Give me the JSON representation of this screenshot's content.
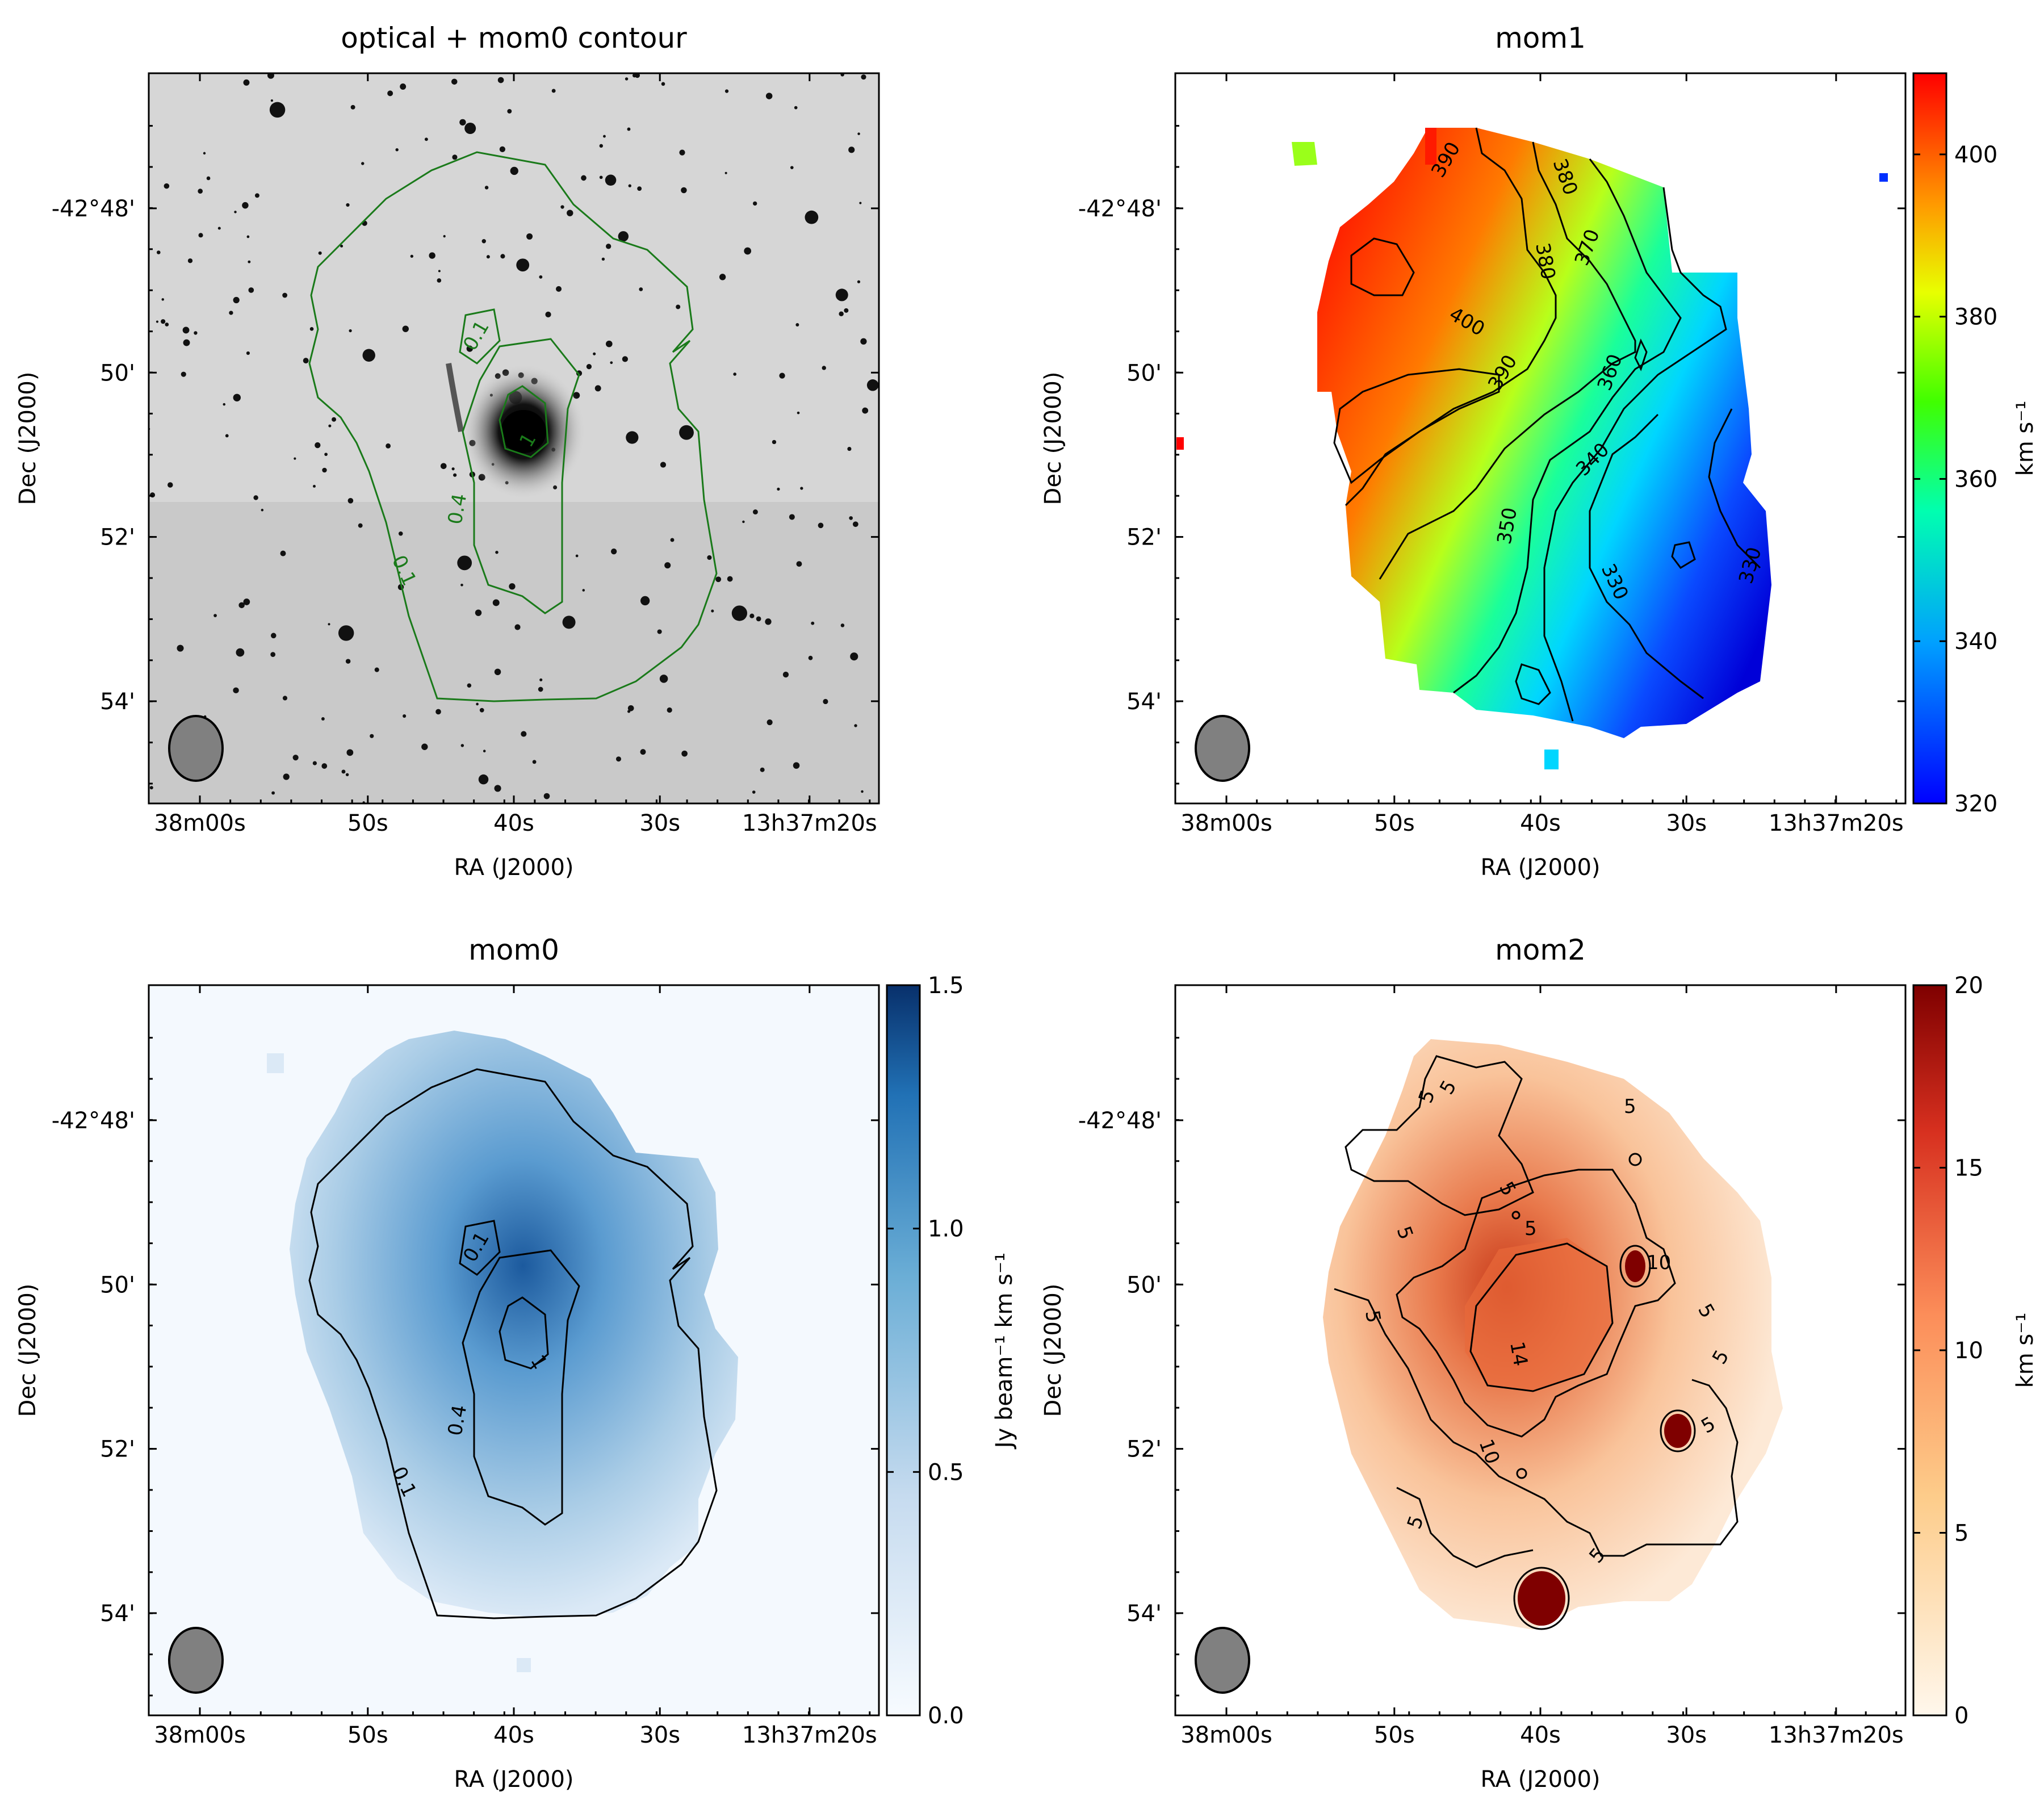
{
  "chart_data": [
    {
      "type": "heatmap",
      "id": "optical",
      "title": "optical + mom0 contour",
      "xlabel": "RA (J2000)",
      "ylabel": "Dec (J2000)",
      "x_ticks": [
        "38m00s",
        "50s",
        "40s",
        "30s",
        "13h37m20s"
      ],
      "y_ticks": [
        "-42°48'",
        "50'",
        "52'",
        "54'"
      ],
      "contour_levels": [
        "0.1",
        "0.4",
        "1"
      ],
      "contour_labels": [
        "0.1",
        "0.1",
        "0.4",
        "1"
      ],
      "contour_color": "#1a7a1a",
      "colorbar": null
    },
    {
      "type": "heatmap",
      "id": "mom1",
      "title": "mom1",
      "xlabel": "RA (J2000)",
      "ylabel": "Dec (J2000)",
      "x_ticks": [
        "38m00s",
        "50s",
        "40s",
        "30s",
        "13h37m20s"
      ],
      "y_ticks": [
        "-42°48'",
        "50'",
        "52'",
        "54'"
      ],
      "contour_labels": [
        "390",
        "380",
        "380",
        "370",
        "400",
        "390",
        "360",
        "340",
        "350",
        "330",
        "330"
      ],
      "colorbar": {
        "label": "km s⁻¹",
        "range": [
          320,
          410
        ],
        "ticks": [
          "320",
          "340",
          "360",
          "380",
          "400"
        ],
        "tick_values": [
          320,
          340,
          360,
          380,
          400
        ],
        "colormap": "jet"
      }
    },
    {
      "type": "heatmap",
      "id": "mom0",
      "title": "mom0",
      "xlabel": "RA (J2000)",
      "ylabel": "Dec (J2000)",
      "x_ticks": [
        "38m00s",
        "50s",
        "40s",
        "30s",
        "13h37m20s"
      ],
      "y_ticks": [
        "-42°48'",
        "50'",
        "52'",
        "54'"
      ],
      "contour_labels": [
        "0.1",
        "0.1",
        "0.4",
        "1"
      ],
      "colorbar": {
        "label": "Jy beam⁻¹ km s⁻¹",
        "range": [
          0.0,
          1.5
        ],
        "ticks": [
          "0.0",
          "0.5",
          "1.0",
          "1.5"
        ],
        "tick_values": [
          0.0,
          0.5,
          1.0,
          1.5
        ],
        "colormap": "Blues"
      }
    },
    {
      "type": "heatmap",
      "id": "mom2",
      "title": "mom2",
      "xlabel": "RA (J2000)",
      "ylabel": "Dec (J2000)",
      "x_ticks": [
        "38m00s",
        "50s",
        "40s",
        "30s",
        "13h37m20s"
      ],
      "y_ticks": [
        "-42°48'",
        "50'",
        "52'",
        "54'"
      ],
      "contour_labels": [
        "5",
        "5",
        "5",
        "5",
        "5",
        "5",
        "5",
        "5",
        "5",
        "5",
        "5",
        "5",
        "14",
        "10",
        "10"
      ],
      "colorbar": {
        "label": "km s⁻¹",
        "range": [
          0,
          20
        ],
        "ticks": [
          "0",
          "5",
          "10",
          "15",
          "20"
        ],
        "tick_values": [
          0,
          5,
          10,
          15,
          20
        ],
        "colormap": "OrRd"
      }
    }
  ]
}
